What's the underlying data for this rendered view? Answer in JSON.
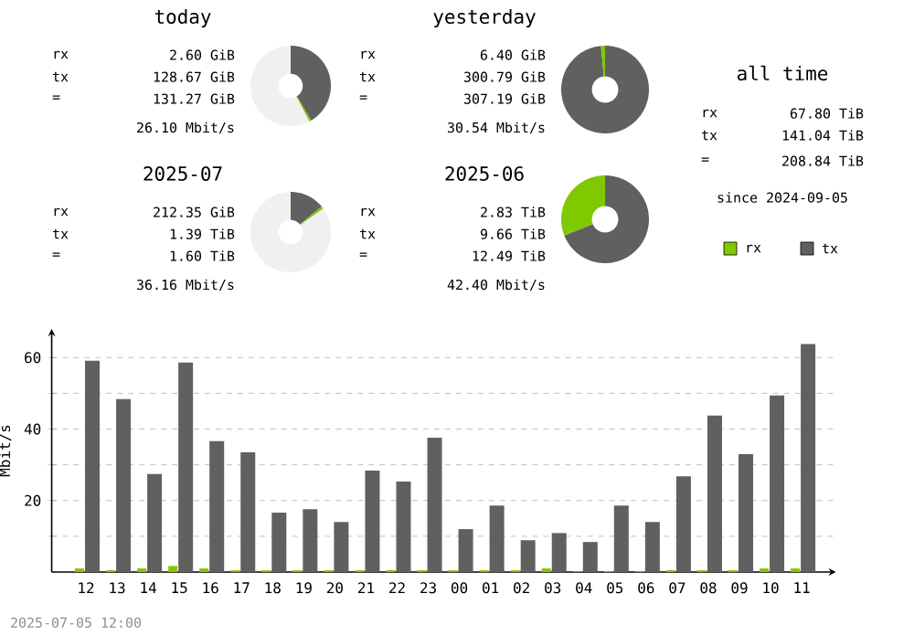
{
  "chart_data": [
    {
      "type": "donut",
      "title": "today",
      "categories": [
        null,
        null,
        null
      ],
      "values": [
        41.5,
        0.8,
        57.7
      ],
      "colors": [
        "#606060",
        "#80c800",
        "#f0f0f0"
      ],
      "annotations": [
        "rx",
        "2.60 GiB",
        "tx",
        "128.67 GiB",
        "=",
        "131.27 GiB",
        "26.10 Mbit/s"
      ]
    },
    {
      "type": "donut",
      "title": "yesterday",
      "categories": [
        null,
        null
      ],
      "values": [
        98.5,
        1.5
      ],
      "colors": [
        "#606060",
        "#80c800"
      ],
      "annotations": [
        "rx",
        "6.40 GiB",
        "tx",
        "300.79 GiB",
        "=",
        "307.19 GiB",
        "30.54 Mbit/s"
      ]
    },
    {
      "type": "donut",
      "title": "2025-07",
      "categories": [
        null,
        null,
        null
      ],
      "values": [
        14,
        1,
        85
      ],
      "colors": [
        "#606060",
        "#80c800",
        "#f0f0f0"
      ],
      "annotations": [
        "rx",
        "212.35 GiB",
        "tx",
        "1.39 TiB",
        "=",
        "1.60 TiB",
        "36.16 Mbit/s"
      ]
    },
    {
      "type": "donut",
      "title": "2025-06",
      "categories": [
        null,
        null
      ],
      "values": [
        69,
        31
      ],
      "colors": [
        "#606060",
        "#80c800"
      ],
      "annotations": [
        "rx",
        "2.83 TiB",
        "tx",
        "9.66 TiB",
        "=",
        "12.49 TiB",
        "42.40 Mbit/s"
      ]
    },
    {
      "type": "other",
      "title": "all time",
      "annotations": [
        "rx",
        "67.80 TiB",
        "tx",
        "141.04 TiB",
        "=",
        "208.84 TiB",
        "since 2024-09-05"
      ]
    },
    {
      "type": "bar",
      "categories": [
        "12",
        "13",
        "14",
        "15",
        "16",
        "17",
        "18",
        "19",
        "20",
        "21",
        "22",
        "23",
        "00",
        "01",
        "02",
        "03",
        "04",
        "05",
        "06",
        "07",
        "08",
        "09",
        "10",
        "11"
      ],
      "series": [
        {
          "name": "rx",
          "color": "#80c800",
          "values": [
            1.0,
            0.5,
            1.0,
            1.7,
            1.0,
            0.5,
            0.5,
            0.5,
            0.5,
            0.5,
            0.5,
            0.5,
            0.5,
            0.5,
            0.5,
            1.0,
            0.2,
            0.3,
            0.3,
            0.5,
            0.5,
            0.5,
            1.0,
            1.0
          ]
        },
        {
          "name": "tx",
          "color": "#606060",
          "values": [
            59.1,
            48.4,
            27.4,
            58.6,
            36.6,
            33.5,
            16.6,
            17.6,
            14.0,
            28.4,
            25.3,
            37.6,
            12.0,
            18.6,
            8.9,
            10.9,
            8.4,
            18.6,
            14.0,
            26.8,
            43.8,
            33.0,
            49.4,
            63.8
          ]
        }
      ],
      "ylabel": "Mbit/s",
      "ylim": [
        0,
        68
      ],
      "yticks": [
        {
          "value": 10,
          "label": null
        },
        20,
        {
          "value": 30,
          "label": null
        },
        40,
        {
          "value": 50,
          "label": null
        },
        60
      ],
      "grid": "y",
      "legend": "top right",
      "annotations": [
        "2025-07-05 12:00"
      ]
    }
  ]
}
